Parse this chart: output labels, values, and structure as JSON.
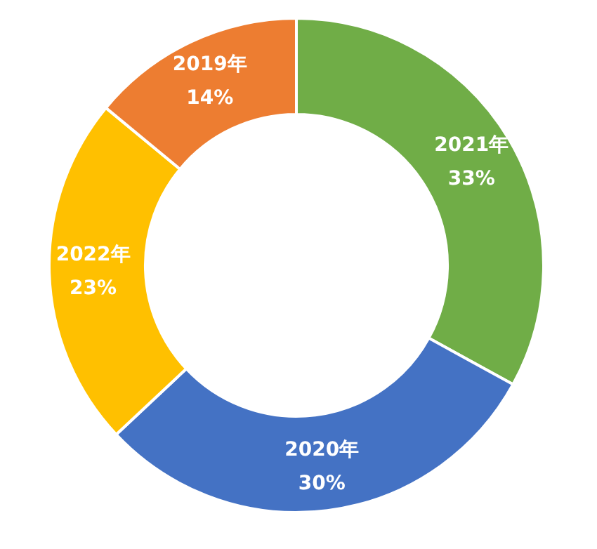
{
  "chart_data": {
    "type": "donut",
    "categories": [
      "2021年",
      "2020年",
      "2022年",
      "2019年"
    ],
    "values": [
      33,
      30,
      23,
      14
    ],
    "value_labels": [
      "33%",
      "30%",
      "23%",
      "14%"
    ],
    "colors": [
      "#70ad47",
      "#4472c4",
      "#ffc000",
      "#ed7d31"
    ]
  }
}
